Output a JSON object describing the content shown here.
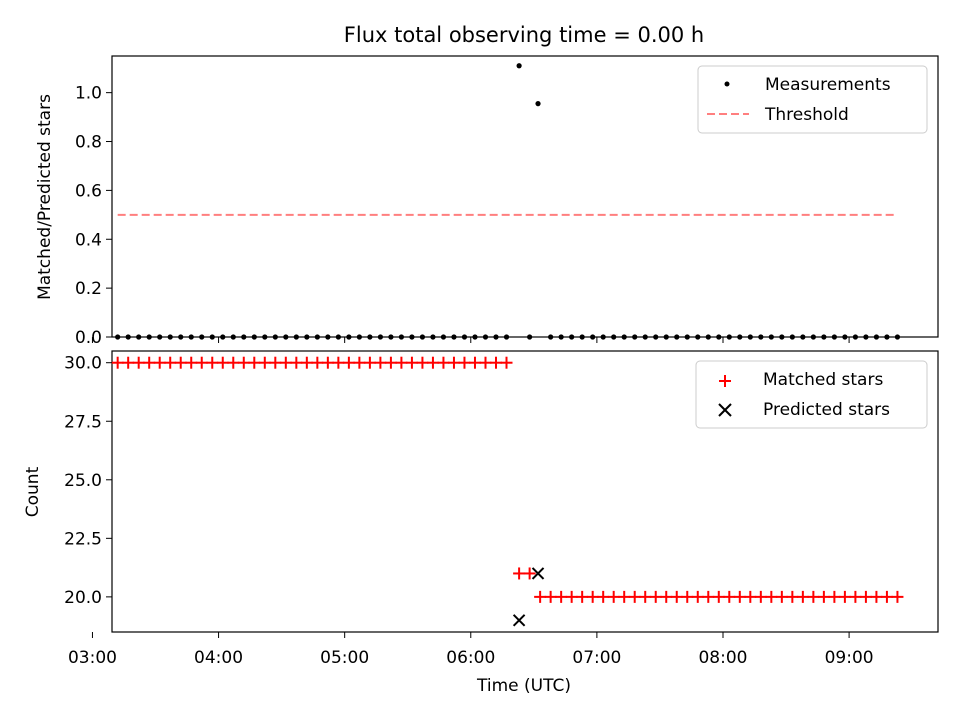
{
  "title": "Flux total observing time = 0.00 h",
  "xlabel": "Time (UTC)",
  "colors": {
    "threshold": "#ff7f7f",
    "matched": "#ff0000",
    "predicted": "#000000",
    "measurement": "#000000"
  },
  "chart_data": [
    {
      "type": "scatter",
      "ylabel": "Matched/Predicted stars",
      "xlim": [
        "03:00",
        "09:42"
      ],
      "ylim": [
        0,
        1.15
      ],
      "yticks": [
        "0.0",
        "0.2",
        "0.4",
        "0.6",
        "0.8",
        "1.0"
      ],
      "ytick_values": [
        0,
        0.2,
        0.4,
        0.6,
        0.8,
        1.0
      ],
      "legend": {
        "placement": "top-right",
        "entries": [
          "Measurements",
          "Threshold"
        ]
      },
      "series": [
        {
          "name": "Measurements",
          "style": "dot",
          "points": [
            [
              "03:12",
              0
            ],
            [
              "03:17",
              0
            ],
            [
              "03:22",
              0
            ],
            [
              "03:27",
              0
            ],
            [
              "03:32",
              0
            ],
            [
              "03:37",
              0
            ],
            [
              "03:42",
              0
            ],
            [
              "03:47",
              0
            ],
            [
              "03:52",
              0
            ],
            [
              "03:57",
              0
            ],
            [
              "04:02",
              0
            ],
            [
              "04:07",
              0
            ],
            [
              "04:12",
              0
            ],
            [
              "04:17",
              0
            ],
            [
              "04:22",
              0
            ],
            [
              "04:27",
              0
            ],
            [
              "04:32",
              0
            ],
            [
              "04:37",
              0
            ],
            [
              "04:42",
              0
            ],
            [
              "04:47",
              0
            ],
            [
              "04:52",
              0
            ],
            [
              "04:57",
              0
            ],
            [
              "05:02",
              0
            ],
            [
              "05:07",
              0
            ],
            [
              "05:12",
              0
            ],
            [
              "05:17",
              0
            ],
            [
              "05:22",
              0
            ],
            [
              "05:27",
              0
            ],
            [
              "05:32",
              0
            ],
            [
              "05:37",
              0
            ],
            [
              "05:42",
              0
            ],
            [
              "05:47",
              0
            ],
            [
              "05:52",
              0
            ],
            [
              "05:57",
              0
            ],
            [
              "06:02",
              0
            ],
            [
              "06:07",
              0
            ],
            [
              "06:12",
              0
            ],
            [
              "06:17",
              0
            ],
            [
              "06:23",
              1.11
            ],
            [
              "06:28",
              0
            ],
            [
              "06:32",
              0.955
            ],
            [
              "06:38",
              0
            ],
            [
              "06:43",
              0
            ],
            [
              "06:48",
              0
            ],
            [
              "06:53",
              0
            ],
            [
              "06:58",
              0
            ],
            [
              "07:03",
              0
            ],
            [
              "07:08",
              0
            ],
            [
              "07:13",
              0
            ],
            [
              "07:18",
              0
            ],
            [
              "07:23",
              0
            ],
            [
              "07:28",
              0
            ],
            [
              "07:33",
              0
            ],
            [
              "07:38",
              0
            ],
            [
              "07:43",
              0
            ],
            [
              "07:48",
              0
            ],
            [
              "07:53",
              0
            ],
            [
              "07:58",
              0
            ],
            [
              "08:03",
              0
            ],
            [
              "08:08",
              0
            ],
            [
              "08:13",
              0
            ],
            [
              "08:18",
              0
            ],
            [
              "08:23",
              0
            ],
            [
              "08:28",
              0
            ],
            [
              "08:33",
              0
            ],
            [
              "08:38",
              0
            ],
            [
              "08:43",
              0
            ],
            [
              "08:48",
              0
            ],
            [
              "08:53",
              0
            ],
            [
              "08:58",
              0
            ],
            [
              "09:03",
              0
            ],
            [
              "09:08",
              0
            ],
            [
              "09:13",
              0
            ],
            [
              "09:18",
              0
            ],
            [
              "09:23",
              0
            ]
          ]
        },
        {
          "name": "Threshold",
          "style": "dashed-line",
          "points": [
            [
              "03:12",
              0.5
            ],
            [
              "09:23",
              0.5
            ]
          ]
        }
      ]
    },
    {
      "type": "scatter",
      "ylabel": "Count",
      "xlim": [
        "03:00",
        "09:42"
      ],
      "ylim": [
        18.5,
        30.5
      ],
      "yticks": [
        "20.0",
        "22.5",
        "25.0",
        "27.5",
        "30.0"
      ],
      "ytick_values": [
        20,
        22.5,
        25,
        27.5,
        30
      ],
      "xticks": [
        "03:00",
        "04:00",
        "05:00",
        "06:00",
        "07:00",
        "08:00",
        "09:00"
      ],
      "legend": {
        "placement": "top-right",
        "entries": [
          "Matched stars",
          "Predicted stars"
        ]
      },
      "series": [
        {
          "name": "Matched stars",
          "style": "plus",
          "points": [
            [
              "03:12",
              30
            ],
            [
              "03:17",
              30
            ],
            [
              "03:22",
              30
            ],
            [
              "03:27",
              30
            ],
            [
              "03:32",
              30
            ],
            [
              "03:37",
              30
            ],
            [
              "03:42",
              30
            ],
            [
              "03:47",
              30
            ],
            [
              "03:52",
              30
            ],
            [
              "03:57",
              30
            ],
            [
              "04:02",
              30
            ],
            [
              "04:07",
              30
            ],
            [
              "04:12",
              30
            ],
            [
              "04:17",
              30
            ],
            [
              "04:22",
              30
            ],
            [
              "04:27",
              30
            ],
            [
              "04:32",
              30
            ],
            [
              "04:37",
              30
            ],
            [
              "04:42",
              30
            ],
            [
              "04:47",
              30
            ],
            [
              "04:52",
              30
            ],
            [
              "04:57",
              30
            ],
            [
              "05:02",
              30
            ],
            [
              "05:07",
              30
            ],
            [
              "05:12",
              30
            ],
            [
              "05:17",
              30
            ],
            [
              "05:22",
              30
            ],
            [
              "05:27",
              30
            ],
            [
              "05:32",
              30
            ],
            [
              "05:37",
              30
            ],
            [
              "05:42",
              30
            ],
            [
              "05:47",
              30
            ],
            [
              "05:52",
              30
            ],
            [
              "05:57",
              30
            ],
            [
              "06:02",
              30
            ],
            [
              "06:07",
              30
            ],
            [
              "06:12",
              30
            ],
            [
              "06:17",
              30
            ],
            [
              "06:23",
              21
            ],
            [
              "06:28",
              21
            ],
            [
              "06:33",
              20
            ],
            [
              "06:38",
              20
            ],
            [
              "06:43",
              20
            ],
            [
              "06:48",
              20
            ],
            [
              "06:53",
              20
            ],
            [
              "06:58",
              20
            ],
            [
              "07:03",
              20
            ],
            [
              "07:08",
              20
            ],
            [
              "07:13",
              20
            ],
            [
              "07:18",
              20
            ],
            [
              "07:23",
              20
            ],
            [
              "07:28",
              20
            ],
            [
              "07:33",
              20
            ],
            [
              "07:38",
              20
            ],
            [
              "07:43",
              20
            ],
            [
              "07:48",
              20
            ],
            [
              "07:53",
              20
            ],
            [
              "07:58",
              20
            ],
            [
              "08:03",
              20
            ],
            [
              "08:08",
              20
            ],
            [
              "08:13",
              20
            ],
            [
              "08:18",
              20
            ],
            [
              "08:23",
              20
            ],
            [
              "08:28",
              20
            ],
            [
              "08:33",
              20
            ],
            [
              "08:38",
              20
            ],
            [
              "08:43",
              20
            ],
            [
              "08:48",
              20
            ],
            [
              "08:53",
              20
            ],
            [
              "08:58",
              20
            ],
            [
              "09:03",
              20
            ],
            [
              "09:08",
              20
            ],
            [
              "09:13",
              20
            ],
            [
              "09:18",
              20
            ],
            [
              "09:23",
              20
            ]
          ]
        },
        {
          "name": "Predicted stars",
          "style": "x",
          "points": [
            [
              "06:23",
              19
            ],
            [
              "06:32",
              21
            ]
          ]
        }
      ]
    }
  ]
}
